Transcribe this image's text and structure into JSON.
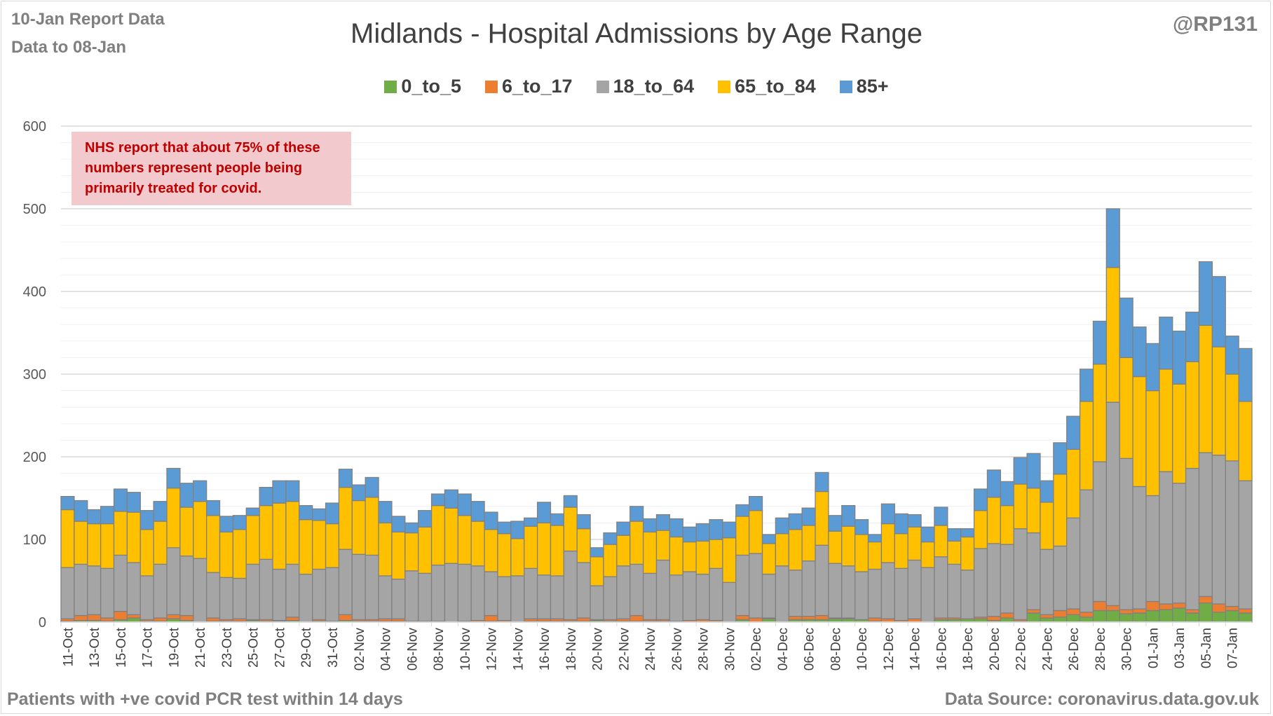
{
  "header": {
    "report_line": "10-Jan Report Data",
    "data_line": "Data to 08-Jan",
    "handle": "@RP131"
  },
  "annotation": {
    "lines": [
      "NHS report that about 75% of these",
      "numbers represent people being",
      "primarily treated for covid."
    ]
  },
  "footer": {
    "left": "Patients with  +ve covid PCR test within 14 days",
    "right": "Data Source: coronavirus.data.gov.uk"
  },
  "chart_data": {
    "type": "bar",
    "stacked": true,
    "title": "Midlands - Hospital Admissions by Age Range",
    "xlabel": "",
    "ylabel": "",
    "ylim": [
      0,
      600
    ],
    "yticks": [
      0,
      100,
      200,
      300,
      400,
      500,
      600
    ],
    "grid": true,
    "legend_position": "top-center",
    "categories": [
      "11-Oct",
      "12-Oct",
      "13-Oct",
      "14-Oct",
      "15-Oct",
      "16-Oct",
      "17-Oct",
      "18-Oct",
      "19-Oct",
      "20-Oct",
      "21-Oct",
      "22-Oct",
      "23-Oct",
      "24-Oct",
      "25-Oct",
      "26-Oct",
      "27-Oct",
      "28-Oct",
      "29-Oct",
      "30-Oct",
      "31-Oct",
      "01-Nov",
      "02-Nov",
      "03-Nov",
      "04-Nov",
      "05-Nov",
      "06-Nov",
      "07-Nov",
      "08-Nov",
      "09-Nov",
      "10-Nov",
      "11-Nov",
      "12-Nov",
      "13-Nov",
      "14-Nov",
      "15-Nov",
      "16-Nov",
      "17-Nov",
      "18-Nov",
      "19-Nov",
      "20-Nov",
      "21-Nov",
      "22-Nov",
      "23-Nov",
      "24-Nov",
      "25-Nov",
      "26-Nov",
      "27-Nov",
      "28-Nov",
      "29-Nov",
      "30-Nov",
      "01-Dec",
      "02-Dec",
      "03-Dec",
      "04-Dec",
      "05-Dec",
      "06-Dec",
      "07-Dec",
      "08-Dec",
      "09-Dec",
      "10-Dec",
      "11-Dec",
      "12-Dec",
      "13-Dec",
      "14-Dec",
      "15-Dec",
      "16-Dec",
      "17-Dec",
      "18-Dec",
      "19-Dec",
      "20-Dec",
      "21-Dec",
      "22-Dec",
      "23-Dec",
      "24-Dec",
      "25-Dec",
      "26-Dec",
      "27-Dec",
      "28-Dec",
      "29-Dec",
      "30-Dec",
      "31-Dec",
      "01-Jan",
      "02-Jan",
      "03-Jan",
      "04-Jan",
      "05-Jan",
      "06-Jan",
      "07-Jan",
      "08-Jan"
    ],
    "series": [
      {
        "name": "0_to_5",
        "color": "#70ad47",
        "values": [
          1,
          2,
          2,
          1,
          3,
          5,
          1,
          1,
          4,
          2,
          0,
          1,
          1,
          1,
          2,
          1,
          1,
          2,
          0,
          1,
          1,
          2,
          1,
          1,
          1,
          1,
          0,
          0,
          0,
          0,
          0,
          0,
          1,
          0,
          0,
          1,
          1,
          1,
          1,
          1,
          2,
          1,
          1,
          1,
          1,
          1,
          0,
          0,
          0,
          0,
          0,
          3,
          0,
          4,
          0,
          3,
          3,
          3,
          4,
          4,
          3,
          1,
          0,
          0,
          0,
          0,
          3,
          3,
          4,
          4,
          2,
          5,
          1,
          11,
          5,
          6,
          9,
          6,
          14,
          14,
          10,
          11,
          14,
          15,
          17,
          11,
          23,
          12,
          14,
          11
        ]
      },
      {
        "name": "6_to_17",
        "color": "#ed7d31",
        "values": [
          3,
          6,
          7,
          4,
          10,
          4,
          2,
          4,
          5,
          6,
          0,
          4,
          2,
          3,
          1,
          2,
          1,
          4,
          0,
          2,
          0,
          7,
          2,
          2,
          3,
          3,
          1,
          1,
          1,
          0,
          1,
          2,
          7,
          2,
          0,
          3,
          3,
          3,
          2,
          4,
          1,
          2,
          3,
          7,
          2,
          2,
          1,
          2,
          3,
          2,
          0,
          5,
          5,
          1,
          0,
          4,
          4,
          5,
          1,
          1,
          0,
          4,
          4,
          2,
          4,
          0,
          2,
          2,
          0,
          2,
          5,
          6,
          2,
          4,
          4,
          8,
          7,
          6,
          11,
          6,
          5,
          5,
          11,
          7,
          6,
          4,
          8,
          10,
          5,
          5
        ]
      },
      {
        "name": "18_to_64",
        "color": "#a5a5a5",
        "values": [
          62,
          62,
          59,
          60,
          68,
          63,
          53,
          65,
          81,
          72,
          77,
          55,
          51,
          49,
          67,
          73,
          62,
          64,
          58,
          61,
          65,
          79,
          79,
          78,
          52,
          48,
          61,
          58,
          68,
          71,
          69,
          66,
          53,
          53,
          56,
          61,
          53,
          52,
          83,
          67,
          41,
          52,
          64,
          62,
          56,
          72,
          56,
          59,
          55,
          63,
          48,
          73,
          78,
          53,
          68,
          56,
          67,
          85,
          66,
          63,
          58,
          59,
          68,
          63,
          71,
          66,
          74,
          65,
          59,
          83,
          88,
          83,
          110,
          93,
          79,
          78,
          110,
          148,
          169,
          246,
          183,
          148,
          128,
          160,
          145,
          171,
          174,
          180,
          176,
          155
        ]
      },
      {
        "name": "65_to_84",
        "color": "#ffc000",
        "values": [
          70,
          52,
          51,
          54,
          53,
          61,
          56,
          52,
          72,
          59,
          69,
          69,
          55,
          59,
          59,
          65,
          80,
          76,
          66,
          59,
          53,
          75,
          65,
          70,
          64,
          57,
          46,
          56,
          72,
          67,
          59,
          54,
          51,
          52,
          45,
          51,
          63,
          61,
          53,
          41,
          35,
          39,
          37,
          52,
          50,
          36,
          46,
          36,
          40,
          35,
          54,
          47,
          52,
          37,
          39,
          49,
          43,
          65,
          39,
          48,
          45,
          33,
          47,
          42,
          40,
          31,
          38,
          28,
          40,
          46,
          56,
          47,
          54,
          54,
          57,
          87,
          83,
          107,
          118,
          163,
          122,
          133,
          127,
          124,
          120,
          129,
          154,
          131,
          105,
          96
        ]
      },
      {
        "name": "85+",
        "color": "#5b9bd5",
        "values": [
          16,
          25,
          17,
          21,
          27,
          24,
          23,
          24,
          24,
          29,
          25,
          18,
          19,
          17,
          9,
          22,
          27,
          25,
          17,
          14,
          25,
          22,
          19,
          24,
          26,
          19,
          12,
          20,
          14,
          22,
          26,
          24,
          21,
          14,
          21,
          10,
          25,
          14,
          14,
          17,
          11,
          14,
          16,
          18,
          16,
          19,
          22,
          18,
          21,
          24,
          19,
          14,
          17,
          11,
          19,
          19,
          21,
          23,
          19,
          25,
          18,
          9,
          24,
          24,
          15,
          18,
          22,
          15,
          10,
          26,
          33,
          29,
          32,
          42,
          26,
          38,
          40,
          39,
          52,
          71,
          72,
          60,
          57,
          63,
          64,
          60,
          77,
          85,
          46,
          64
        ]
      }
    ]
  }
}
